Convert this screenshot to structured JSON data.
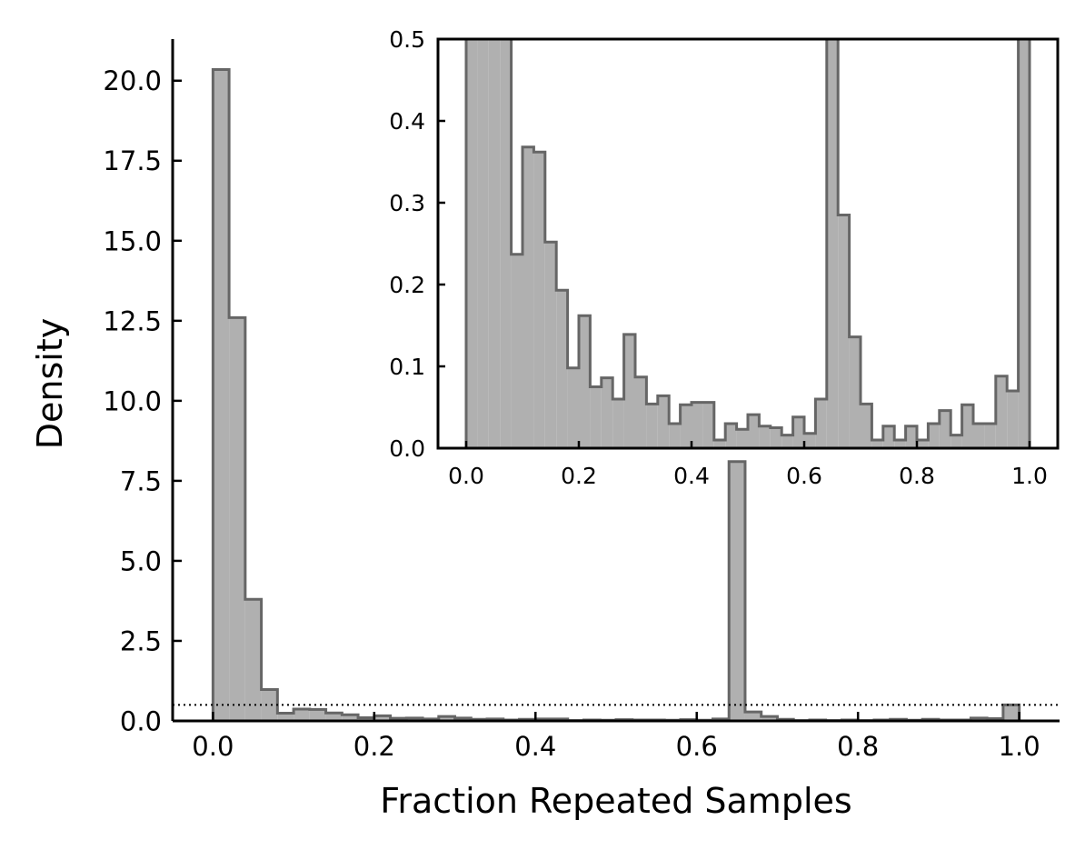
{
  "chart_data": [
    {
      "type": "bar",
      "panel": "main",
      "xlabel": "Fraction Repeated Samples",
      "ylabel": "Density",
      "xlim": [
        -0.05,
        1.05
      ],
      "ylim": [
        0,
        21.3
      ],
      "xticks": [
        "0.0",
        "0.2",
        "0.4",
        "0.6",
        "0.8",
        "1.0"
      ],
      "yticks": [
        "0.0",
        "2.5",
        "5.0",
        "7.5",
        "10.0",
        "12.5",
        "15.0",
        "17.5",
        "20.0"
      ],
      "bin_width": 0.02,
      "bin_starts": [
        0.0,
        0.02,
        0.04,
        0.06,
        0.08,
        0.1,
        0.12,
        0.14,
        0.16,
        0.18,
        0.2,
        0.22,
        0.24,
        0.26,
        0.28,
        0.3,
        0.32,
        0.34,
        0.36,
        0.38,
        0.4,
        0.42,
        0.44,
        0.46,
        0.48,
        0.5,
        0.52,
        0.54,
        0.56,
        0.58,
        0.6,
        0.62,
        0.64,
        0.66,
        0.68,
        0.7,
        0.72,
        0.74,
        0.76,
        0.78,
        0.8,
        0.82,
        0.84,
        0.86,
        0.88,
        0.9,
        0.92,
        0.94,
        0.96,
        0.98
      ],
      "values": [
        20.35,
        12.6,
        3.8,
        0.98,
        0.24,
        0.37,
        0.36,
        0.25,
        0.19,
        0.1,
        0.16,
        0.08,
        0.09,
        0.06,
        0.14,
        0.09,
        0.05,
        0.06,
        0.03,
        0.05,
        0.06,
        0.06,
        0.01,
        0.03,
        0.02,
        0.04,
        0.03,
        0.03,
        0.02,
        0.04,
        0.02,
        0.06,
        8.1,
        0.28,
        0.14,
        0.05,
        0.01,
        0.03,
        0.01,
        0.03,
        0.01,
        0.03,
        0.05,
        0.02,
        0.05,
        0.03,
        0.03,
        0.09,
        0.07,
        0.5
      ],
      "reference_line": {
        "y": 0.5,
        "style": "dotted"
      },
      "grid": false,
      "color": "#b0b0b0",
      "edge_color": "#666666"
    },
    {
      "type": "bar",
      "panel": "inset",
      "xlim": [
        -0.05,
        1.05
      ],
      "ylim": [
        0,
        0.5
      ],
      "xticks": [
        "0.0",
        "0.2",
        "0.4",
        "0.6",
        "0.8",
        "1.0"
      ],
      "yticks": [
        "0.0",
        "0.1",
        "0.2",
        "0.3",
        "0.4",
        "0.5"
      ],
      "bin_width": 0.02,
      "bin_starts": [
        0.0,
        0.02,
        0.04,
        0.06,
        0.08,
        0.1,
        0.12,
        0.14,
        0.16,
        0.18,
        0.2,
        0.22,
        0.24,
        0.26,
        0.28,
        0.3,
        0.32,
        0.34,
        0.36,
        0.38,
        0.4,
        0.42,
        0.44,
        0.46,
        0.48,
        0.5,
        0.52,
        0.54,
        0.56,
        0.58,
        0.6,
        0.62,
        0.64,
        0.66,
        0.68,
        0.7,
        0.72,
        0.74,
        0.76,
        0.78,
        0.8,
        0.82,
        0.84,
        0.86,
        0.88,
        0.9,
        0.92,
        0.94,
        0.96,
        0.98
      ],
      "values": [
        20.35,
        12.6,
        3.8,
        0.98,
        0.237,
        0.368,
        0.362,
        0.252,
        0.193,
        0.098,
        0.162,
        0.075,
        0.086,
        0.06,
        0.139,
        0.087,
        0.054,
        0.064,
        0.03,
        0.053,
        0.056,
        0.056,
        0.01,
        0.03,
        0.023,
        0.041,
        0.027,
        0.025,
        0.016,
        0.038,
        0.018,
        0.06,
        8.1,
        0.285,
        0.136,
        0.054,
        0.01,
        0.027,
        0.01,
        0.027,
        0.01,
        0.03,
        0.046,
        0.016,
        0.053,
        0.03,
        0.03,
        0.088,
        0.07,
        0.5
      ],
      "grid": false,
      "color": "#b0b0b0",
      "edge_color": "#666666"
    }
  ]
}
